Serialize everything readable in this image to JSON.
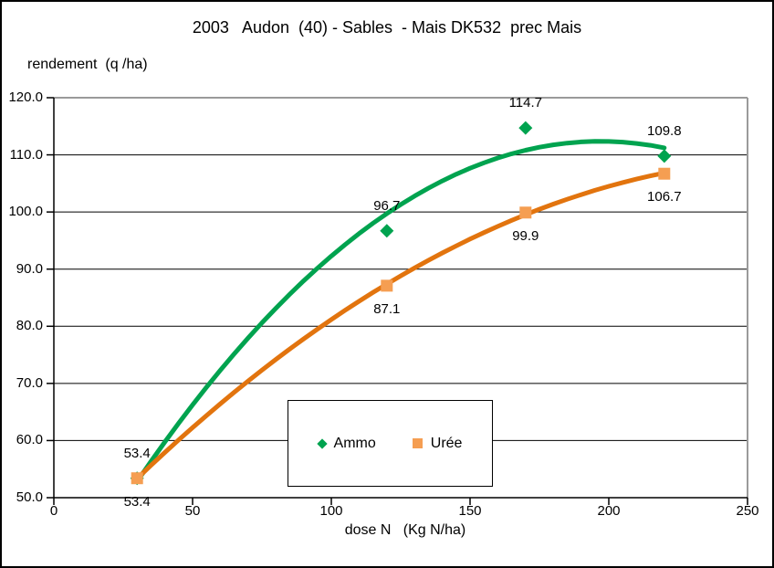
{
  "chart_data": {
    "type": "scatter",
    "title": "2003   Audon  (40) - Sables  - Mais DK532  prec Mais",
    "ylabel": "rendement  (q /ha)",
    "xlabel": "dose N   (Kg N/ha)",
    "xlim": [
      0,
      250
    ],
    "ylim": [
      50,
      120
    ],
    "x_ticks": [
      0,
      50,
      100,
      150,
      200,
      250
    ],
    "y_ticks": [
      "50.0",
      "60.0",
      "70.0",
      "80.0",
      "90.0",
      "100.0",
      "110.0",
      "120.0"
    ],
    "grid": "horizontal",
    "legend_position": "bottom-center-box",
    "colors": {
      "ammo_line": "#00A34F",
      "ammo_marker": "#00A34F",
      "uree_line": "#E2740E",
      "uree_marker": "#F59E52",
      "gridline": "#000000",
      "plot_border": "#9A9A9A",
      "axis": "#000000"
    },
    "series": [
      {
        "name": "Ammo",
        "marker": "diamond",
        "x": [
          30,
          120,
          170,
          220
        ],
        "y": [
          53.4,
          96.7,
          114.7,
          109.8
        ],
        "point_labels": [
          "53.4",
          "96.7",
          "114.7",
          "109.8"
        ],
        "label_side": "above",
        "trend_poly": [
          29.51,
          0.84141,
          -0.0021362
        ]
      },
      {
        "name": "Urée",
        "marker": "square",
        "x": [
          30,
          120,
          170,
          220
        ],
        "y": [
          53.4,
          87.1,
          99.9,
          106.7
        ],
        "point_labels": [
          "53.4",
          "87.1",
          "99.9",
          "106.7"
        ],
        "label_side": "below",
        "trend_poly": [
          38.52,
          0.52328,
          -0.000967
        ]
      }
    ]
  }
}
